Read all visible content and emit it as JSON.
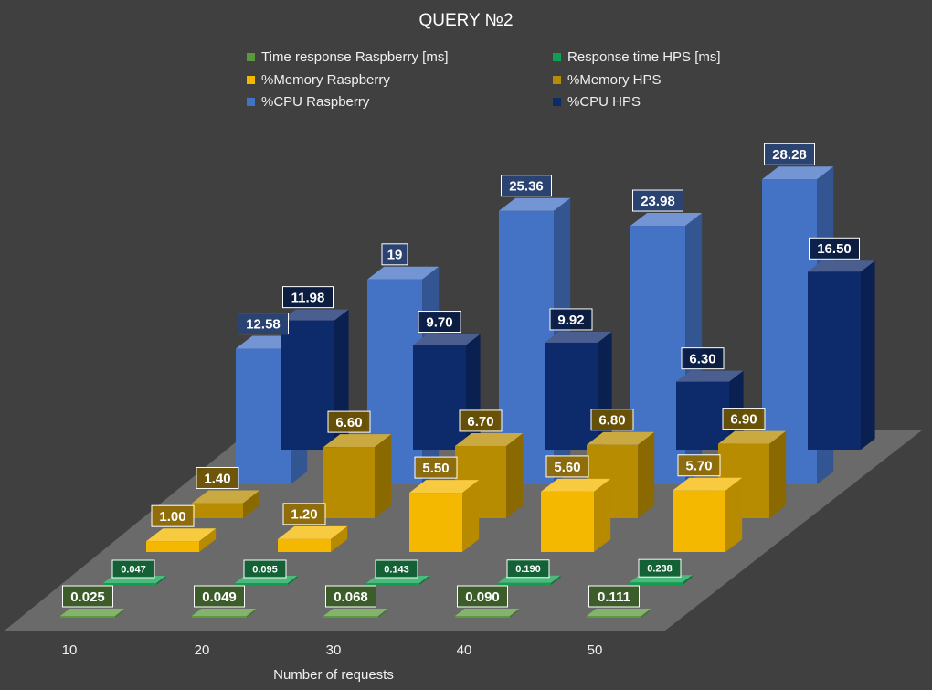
{
  "chart_data": {
    "type": "bar",
    "title": "QUERY №2",
    "xlabel": "Number of requests",
    "categories": [
      "10",
      "20",
      "30",
      "40",
      "50"
    ],
    "series": [
      {
        "name": "Time response Raspberry [ms]",
        "color": "#5b9a3c",
        "values": [
          0.025,
          0.049,
          0.068,
          0.09,
          0.111
        ],
        "labels": [
          "0.025",
          "0.049",
          "0.068",
          "0.090",
          "0.111"
        ]
      },
      {
        "name": "Response time HPS [ms]",
        "color": "#10a050",
        "values": [
          0.047,
          0.095,
          0.143,
          0.19,
          0.238
        ],
        "labels": [
          "0.047",
          "0.095",
          "0.143",
          "0.190",
          "0.238"
        ]
      },
      {
        "name": "%Memory Raspberry",
        "color": "#f5b800",
        "values": [
          1.0,
          1.2,
          5.5,
          5.6,
          5.7
        ],
        "labels": [
          "1.00",
          "1.20",
          "5.50",
          "5.60",
          "5.70"
        ]
      },
      {
        "name": "%Memory HPS",
        "color": "#b88c00",
        "values": [
          1.4,
          6.6,
          6.7,
          6.8,
          6.9
        ],
        "labels": [
          "1.40",
          "6.60",
          "6.70",
          "6.80",
          "6.90"
        ]
      },
      {
        "name": "%CPU Raspberry",
        "color": "#4472c4",
        "values": [
          12.58,
          19,
          25.36,
          23.98,
          28.28
        ],
        "labels": [
          "12.58",
          "19",
          "25.36",
          "23.98",
          "28.28"
        ]
      },
      {
        "name": "%CPU HPS",
        "color": "#0d2a6b",
        "values": [
          11.98,
          9.7,
          9.92,
          6.3,
          16.5
        ],
        "labels": [
          "11.98",
          "9.70",
          "9.92",
          "6.30",
          "16.50"
        ]
      }
    ]
  }
}
